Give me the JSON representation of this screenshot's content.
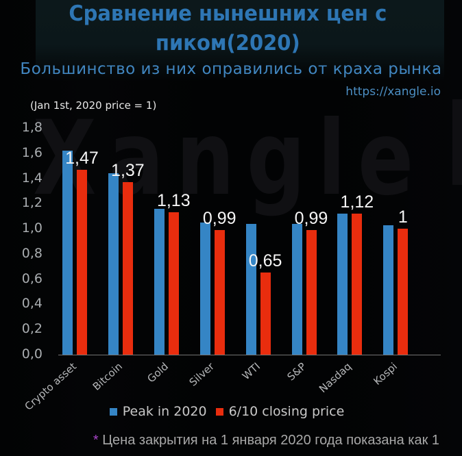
{
  "header": {
    "title_line1": "Сравнение нынешних цен с",
    "title_line2": "пиком(2020)",
    "subtitle": "Большинство из них оправились от краха рынка",
    "url": "https://xangle.io"
  },
  "watermark": "Xangle",
  "chart_data": {
    "type": "bar",
    "note": "(Jan 1st, 2020 price = 1)",
    "categories": [
      "Crypto asset",
      "Bitcoin",
      "Gold",
      "Silver",
      "WTI",
      "S&P",
      "Nasdaq",
      "Kospi"
    ],
    "series": [
      {
        "name": "Peak in 2020",
        "color": "#3585c5",
        "values": [
          1.62,
          1.44,
          1.16,
          1.05,
          1.04,
          1.04,
          1.12,
          1.03
        ]
      },
      {
        "name": "6/10 closing price",
        "color": "#e92d0e",
        "values": [
          1.47,
          1.37,
          1.13,
          0.99,
          0.65,
          0.99,
          1.12,
          1.0
        ],
        "data_labels": [
          "1,47",
          "1,37",
          "1,13",
          "0,99",
          "0,65",
          "0,99",
          "1,12",
          "1"
        ]
      }
    ],
    "ylim": [
      0,
      1.8
    ],
    "yticks": {
      "values": [
        1.8,
        1.6,
        1.4,
        1.2,
        1.0,
        0.8,
        0.6,
        0.4,
        0.2,
        0.0
      ],
      "labels": [
        "1,8",
        "1,6",
        "1,4",
        "1,2",
        "1,0",
        "0,8",
        "0,6",
        "0,4",
        "0,2",
        "0,0"
      ]
    },
    "grid": false,
    "legend_position": "bottom"
  },
  "footnote": {
    "marker": "*",
    "text": "Цена закрытия на 1 января 2020 года показана как 1"
  }
}
